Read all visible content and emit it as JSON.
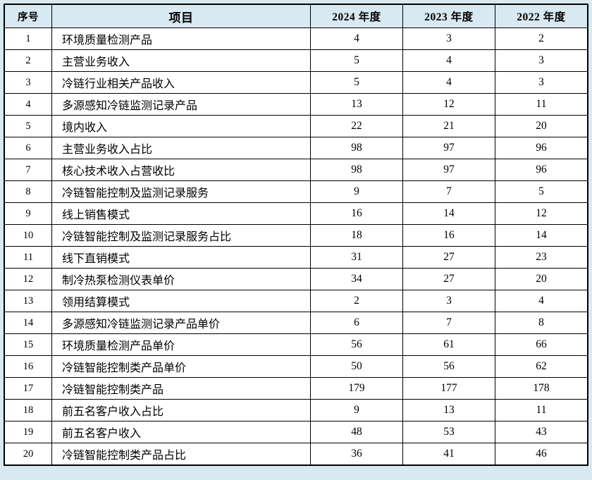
{
  "colors": {
    "page_bg": "#d8e9f1",
    "header_bg": "#d8e9f1",
    "cell_bg": "#ffffff",
    "border": "#000000",
    "text": "#000000"
  },
  "chart_data": {
    "type": "table",
    "title": "",
    "columns": [
      "序号",
      "项目",
      "2024 年度",
      "2023 年度",
      "2022 年度"
    ],
    "rows": [
      [
        1,
        "环境质量检测产品",
        4,
        3,
        2
      ],
      [
        2,
        "主营业务收入",
        5,
        4,
        3
      ],
      [
        3,
        "冷链行业相关产品收入",
        5,
        4,
        3
      ],
      [
        4,
        "多源感知冷链监测记录产品",
        13,
        12,
        11
      ],
      [
        5,
        "境内收入",
        22,
        21,
        20
      ],
      [
        6,
        "主营业务收入占比",
        98,
        97,
        96
      ],
      [
        7,
        "核心技术收入占营收比",
        98,
        97,
        96
      ],
      [
        8,
        "冷链智能控制及监测记录服务",
        9,
        7,
        5
      ],
      [
        9,
        "线上销售模式",
        16,
        14,
        12
      ],
      [
        10,
        "冷链智能控制及监测记录服务占比",
        18,
        16,
        14
      ],
      [
        11,
        "线下直销模式",
        31,
        27,
        23
      ],
      [
        12,
        "制冷热泵检测仪表单价",
        34,
        27,
        20
      ],
      [
        13,
        "领用结算模式",
        2,
        3,
        4
      ],
      [
        14,
        "多源感知冷链监测记录产品单价",
        6,
        7,
        8
      ],
      [
        15,
        "环境质量检测产品单价",
        56,
        61,
        66
      ],
      [
        16,
        "冷链智能控制类产品单价",
        50,
        56,
        62
      ],
      [
        17,
        "冷链智能控制类产品",
        179,
        177,
        178
      ],
      [
        18,
        "前五名客户收入占比",
        9,
        13,
        11
      ],
      [
        19,
        "前五名客户收入",
        48,
        53,
        43
      ],
      [
        20,
        "冷链智能控制类产品占比",
        36,
        41,
        46
      ]
    ]
  }
}
